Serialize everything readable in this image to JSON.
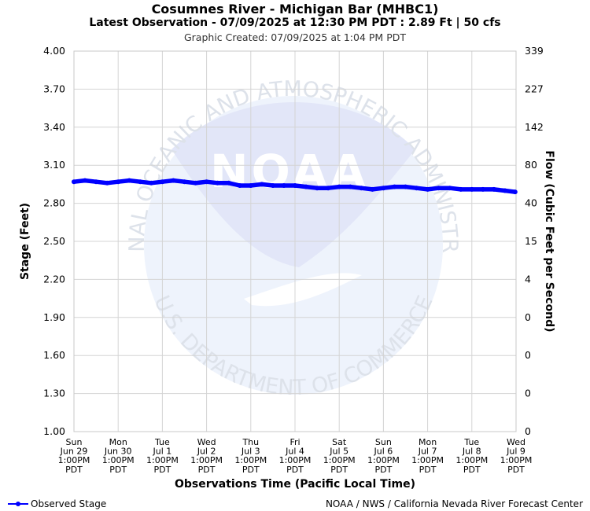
{
  "header": {
    "title": "Cosumnes River - Michigan Bar (MHBC1)",
    "subtitle": "Latest Observation - 07/09/2025 at 12:30 PM PDT : 2.89 Ft | 50 cfs",
    "created": "Graphic Created: 07/09/2025 at 1:04 PM PDT"
  },
  "watermark": {
    "ring_top": "NATIONAL OCEANIC AND ATMOSPHERIC ADMINISTRATION",
    "ring_bottom": "U.S. DEPARTMENT OF COMMERCE",
    "logo": "NOAA"
  },
  "legend": {
    "label": "Observed Stage"
  },
  "footer": {
    "credit": "NOAA / NWS / California Nevada River Forecast Center"
  },
  "colors": {
    "series": "#0000ff",
    "grid": "#d0d0d0",
    "watermark": "#e6ecfa"
  },
  "chart_data": {
    "type": "line",
    "xlabel": "Observations Time (Pacific Local Time)",
    "ylabel": "Stage (Feet)",
    "y2label": "Flow (Cubic Feet per Second)",
    "ylim": [
      1.0,
      4.0
    ],
    "xlim_days": [
      0,
      10
    ],
    "grid": true,
    "legend_position": "bottom-left",
    "y_ticks": [
      "4.00",
      "3.70",
      "3.40",
      "3.10",
      "2.80",
      "2.50",
      "2.20",
      "1.90",
      "1.60",
      "1.30",
      "1.00"
    ],
    "y2_ticks": [
      "339",
      "227",
      "142",
      "80",
      "40",
      "15",
      "4",
      "0",
      "0",
      "0",
      "0"
    ],
    "x_ticks": [
      [
        "Sun",
        "Jun 29",
        "1:00PM",
        "PDT"
      ],
      [
        "Mon",
        "Jun 30",
        "1:00PM",
        "PDT"
      ],
      [
        "Tue",
        "Jul 1",
        "1:00PM",
        "PDT"
      ],
      [
        "Wed",
        "Jul 2",
        "1:00PM",
        "PDT"
      ],
      [
        "Thu",
        "Jul 3",
        "1:00PM",
        "PDT"
      ],
      [
        "Fri",
        "Jul 4",
        "1:00PM",
        "PDT"
      ],
      [
        "Sat",
        "Jul 5",
        "1:00PM",
        "PDT"
      ],
      [
        "Sun",
        "Jul 6",
        "1:00PM",
        "PDT"
      ],
      [
        "Mon",
        "Jul 7",
        "1:00PM",
        "PDT"
      ],
      [
        "Tue",
        "Jul 8",
        "1:00PM",
        "PDT"
      ],
      [
        "Wed",
        "Jul 9",
        "1:00PM",
        "PDT"
      ]
    ],
    "series": [
      {
        "name": "Observed Stage",
        "x": [
          "2025-06-29 13:00",
          "2025-06-29 19:00",
          "2025-06-30 01:00",
          "2025-06-30 07:00",
          "2025-06-30 13:00",
          "2025-06-30 19:00",
          "2025-07-01 01:00",
          "2025-07-01 07:00",
          "2025-07-01 13:00",
          "2025-07-01 19:00",
          "2025-07-02 01:00",
          "2025-07-02 07:00",
          "2025-07-02 13:00",
          "2025-07-02 19:00",
          "2025-07-03 01:00",
          "2025-07-03 07:00",
          "2025-07-03 13:00",
          "2025-07-03 19:00",
          "2025-07-04 01:00",
          "2025-07-04 07:00",
          "2025-07-04 13:00",
          "2025-07-04 19:00",
          "2025-07-05 01:00",
          "2025-07-05 07:00",
          "2025-07-05 13:00",
          "2025-07-05 19:00",
          "2025-07-06 01:00",
          "2025-07-06 07:00",
          "2025-07-06 13:00",
          "2025-07-06 19:00",
          "2025-07-07 01:00",
          "2025-07-07 07:00",
          "2025-07-07 13:00",
          "2025-07-07 19:00",
          "2025-07-08 01:00",
          "2025-07-08 07:00",
          "2025-07-08 13:00",
          "2025-07-08 19:00",
          "2025-07-09 01:00",
          "2025-07-09 07:00",
          "2025-07-09 12:30"
        ],
        "y": [
          2.97,
          2.98,
          2.97,
          2.96,
          2.97,
          2.98,
          2.97,
          2.96,
          2.97,
          2.98,
          2.97,
          2.96,
          2.97,
          2.96,
          2.96,
          2.94,
          2.94,
          2.95,
          2.94,
          2.94,
          2.94,
          2.93,
          2.92,
          2.92,
          2.93,
          2.93,
          2.92,
          2.91,
          2.92,
          2.93,
          2.93,
          2.92,
          2.91,
          2.92,
          2.92,
          2.91,
          2.91,
          2.91,
          2.91,
          2.9,
          2.89
        ]
      }
    ]
  }
}
